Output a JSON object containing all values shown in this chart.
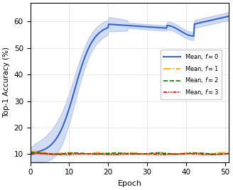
{
  "xlabel": "Epoch",
  "ylabel": "Top-1 Accuracy (%)",
  "xlim": [
    0,
    51
  ],
  "ylim": [
    7,
    67
  ],
  "yticks": [
    10,
    20,
    30,
    40,
    50,
    60
  ],
  "xticks": [
    0,
    10,
    20,
    30,
    40,
    50
  ],
  "legend": [
    {
      "label": "Mean, $f = 0$",
      "color": "#3366cc",
      "linestyle": "-",
      "lw": 1.5
    },
    {
      "label": "Mean, $f = 1$",
      "color": "orange",
      "linestyle": "-.",
      "lw": 1.2
    },
    {
      "label": "Mean, $f = 2$",
      "color": "green",
      "linestyle": "--",
      "lw": 1.2
    },
    {
      "label": "Mean, $f = 3$",
      "color": "red",
      "linestyle": "-.",
      "lw": 1.2
    }
  ],
  "grid": true,
  "figsize": [
    3.28,
    2.68
  ],
  "dpi": 100
}
